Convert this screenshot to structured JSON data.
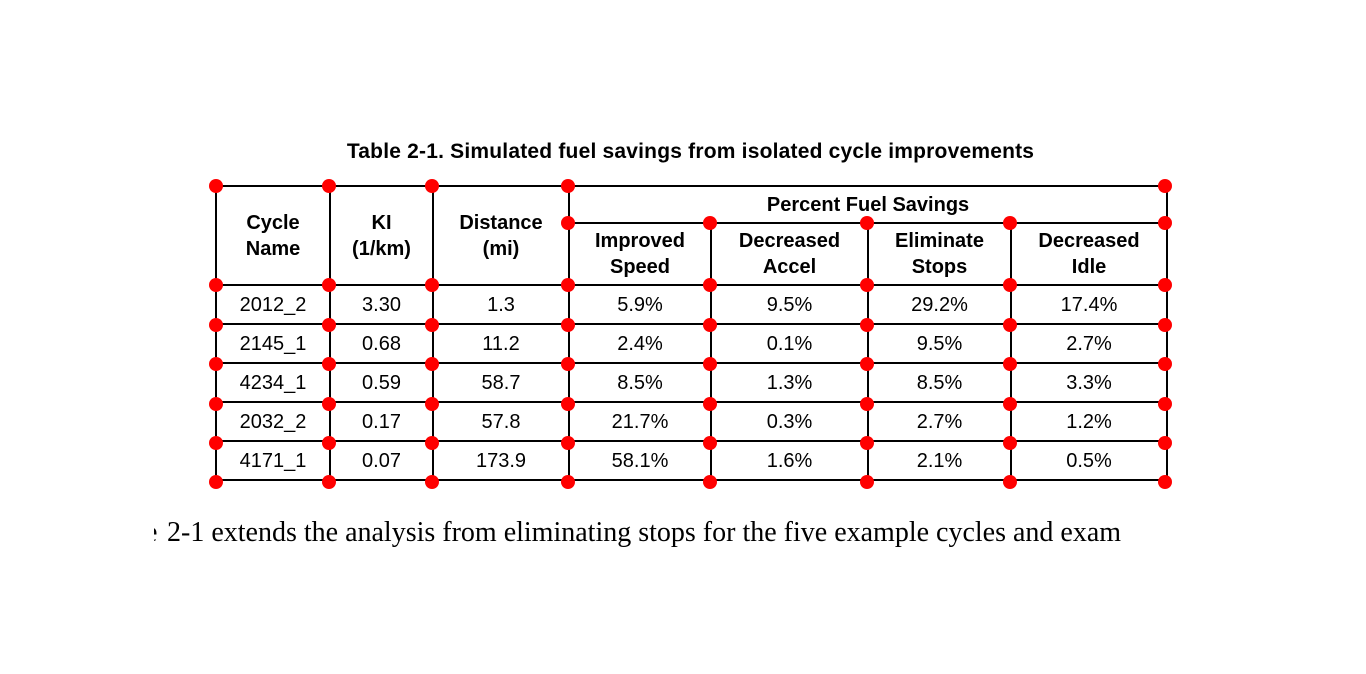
{
  "title": "Table 2-1. Simulated fuel savings from isolated cycle improvements",
  "table": {
    "header": {
      "cycle_name": "Cycle\nName",
      "ki": "KI\n(1/km)",
      "distance": "Distance\n(mi)",
      "group": "Percent Fuel Savings",
      "sub_columns": [
        "Improved\nSpeed",
        "Decreased\nAccel",
        "Eliminate\nStops",
        "Decreased\nIdle"
      ]
    },
    "rows": [
      [
        "2012_2",
        "3.30",
        "1.3",
        "5.9%",
        "9.5%",
        "29.2%",
        "17.4%"
      ],
      [
        "2145_1",
        "0.68",
        "11.2",
        "2.4%",
        "0.1%",
        "9.5%",
        "2.7%"
      ],
      [
        "4234_1",
        "0.59",
        "58.7",
        "8.5%",
        "1.3%",
        "8.5%",
        "3.3%"
      ],
      [
        "2032_2",
        "0.17",
        "57.8",
        "21.7%",
        "0.3%",
        "2.7%",
        "1.2%"
      ],
      [
        "4171_1",
        "0.07",
        "173.9",
        "58.1%",
        "1.6%",
        "2.1%",
        "0.5%"
      ]
    ]
  },
  "paragraph": {
    "fragment": "e",
    "text": "2-1 extends the analysis from eliminating stops for the five example cycles and exam"
  },
  "annotation": {
    "dot_color": "#ff0000",
    "line_color": "#000000"
  }
}
